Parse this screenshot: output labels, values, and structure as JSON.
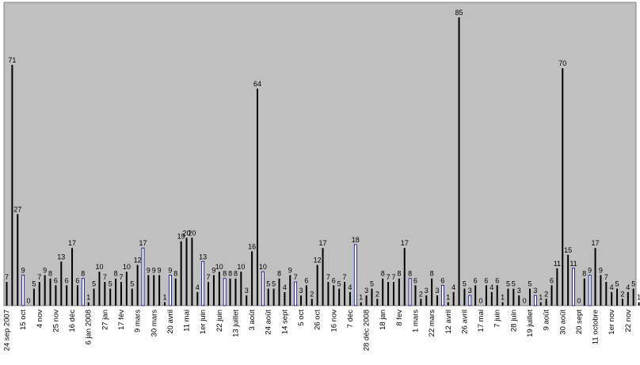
{
  "chart_data": {
    "type": "bar",
    "title": "",
    "xlabel": "",
    "ylabel": "",
    "ylim": [
      0,
      90
    ],
    "grid": false,
    "legend": "none",
    "colors": {
      "plot_background": "#c0c0c0",
      "bar_dark": "#000000",
      "bar_highlight": "#00008b",
      "page_background": "#ffffff"
    },
    "categories": [
      "24 sep 2007",
      "",
      "",
      "15 oct",
      "",
      "",
      "4 nov",
      "",
      "",
      "25 nov",
      "",
      "",
      "16 déc",
      "",
      "",
      "6 jan 2008",
      "",
      "",
      "27 jan",
      "",
      "",
      "17 fév",
      "",
      "",
      "9 mars",
      "",
      "",
      "30 mars",
      "",
      "",
      "20 avril",
      "",
      "",
      "11 mai",
      "",
      "",
      "1er juin",
      "",
      "",
      "22 juin",
      "",
      "",
      "13 juillet",
      "",
      "",
      "3 août",
      "",
      "",
      "24 août",
      "",
      "",
      "14 sept",
      "",
      "",
      "5 oct",
      "",
      "",
      "26 oct",
      "",
      "",
      "16 nov",
      "",
      "",
      "7 déc",
      "",
      "",
      "28 déc 2008",
      "",
      "",
      "18 jan",
      "",
      "",
      "8 fev",
      "",
      "",
      "1 mars",
      "",
      "",
      "22 mars",
      "",
      "",
      "12 avril",
      "",
      "",
      "26 avril",
      "",
      "",
      "17 mai",
      "",
      "",
      "7 juin",
      "",
      "",
      "28 juin",
      "",
      "",
      "19 juillet",
      "",
      "",
      "9 août",
      "",
      "",
      "30 août",
      "",
      "",
      "20 sept",
      "",
      "",
      "11 octobre",
      "",
      "",
      "1er nov",
      "",
      "",
      "22 nov",
      "",
      ""
    ],
    "values": [
      7,
      71,
      27,
      9,
      0,
      5,
      7,
      9,
      8,
      6,
      13,
      6,
      17,
      6,
      8,
      1,
      5,
      10,
      7,
      5,
      8,
      7,
      10,
      5,
      12,
      17,
      9,
      9,
      9,
      1,
      9,
      8,
      19,
      20,
      20,
      4,
      13,
      7,
      9,
      10,
      8,
      8,
      8,
      10,
      3,
      16,
      64,
      10,
      5,
      5,
      8,
      4,
      9,
      7,
      3,
      6,
      2,
      12,
      17,
      7,
      6,
      5,
      7,
      4,
      18,
      1,
      3,
      5,
      2,
      8,
      7,
      7,
      8,
      17,
      8,
      6,
      2,
      3,
      8,
      3,
      6,
      1,
      4,
      85,
      5,
      3,
      6,
      0,
      6,
      4,
      6,
      1,
      5,
      5,
      3,
      0,
      5,
      3,
      1,
      2,
      6,
      11,
      70,
      15,
      11,
      0,
      8,
      9,
      17,
      9,
      7,
      4,
      5,
      2,
      4,
      5,
      1
    ],
    "highlight_indices": [
      3,
      14,
      25,
      30,
      36,
      40,
      47,
      53,
      64,
      74,
      80,
      85,
      97,
      104,
      107
    ]
  }
}
